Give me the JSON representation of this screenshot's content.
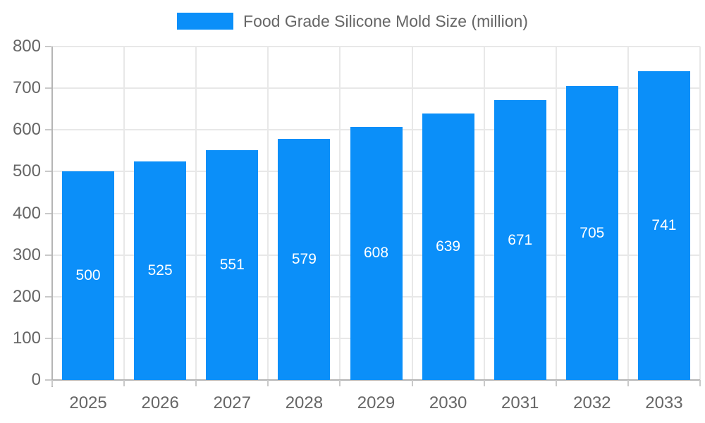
{
  "legend": {
    "label": "Food Grade Silicone Mold Size (million)"
  },
  "chart_data": {
    "type": "bar",
    "title": "Food Grade Silicone Mold Size (million)",
    "categories": [
      "2025",
      "2026",
      "2027",
      "2028",
      "2029",
      "2030",
      "2031",
      "2032",
      "2033"
    ],
    "values": [
      500,
      525,
      551,
      579,
      608,
      639,
      671,
      705,
      741
    ],
    "xlabel": "",
    "ylabel": "",
    "ylim": [
      0,
      800
    ],
    "ytick_step": 100,
    "ytick_labels": [
      "0",
      "100",
      "200",
      "300",
      "400",
      "500",
      "600",
      "700",
      "800"
    ],
    "grid": "on",
    "legend_position": "top-center",
    "value_labels": "inside-center-white",
    "colors": {
      "bar": "#0b8ff9",
      "value_label": "#ffffff",
      "axis_label": "#666666",
      "gridline": "#e8e8e8",
      "axis_line": "#b5b5b5",
      "tick": "#c9c9c9",
      "background": "#ffffff"
    }
  }
}
